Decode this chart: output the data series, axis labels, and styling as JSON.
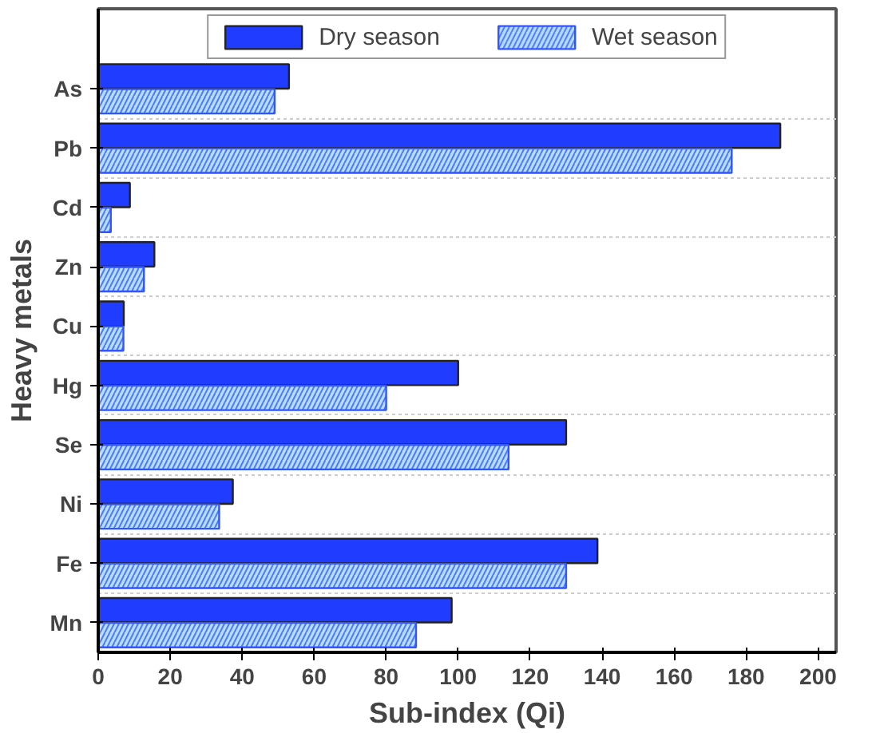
{
  "chart_data": {
    "type": "bar",
    "orientation": "horizontal",
    "xlabel": "Sub-index (Qi)",
    "ylabel": "Heavy metals",
    "categories": [
      "As",
      "Pb",
      "Cd",
      "Zn",
      "Cu",
      "Hg",
      "Se",
      "Ni",
      "Fe",
      "Mn"
    ],
    "series": [
      {
        "name": "Dry season",
        "color": "#1f3cff",
        "values": [
          53,
          189.5,
          8.8,
          15.6,
          7.1,
          100,
          130,
          37.4,
          138.7,
          98.2
        ]
      },
      {
        "name": "Wet season",
        "color": "#b8dcff",
        "values": [
          49,
          176,
          3.5,
          12.7,
          7,
          80,
          114,
          33.6,
          130,
          88.3
        ]
      }
    ],
    "xlim": [
      0,
      205
    ],
    "xticks": [
      0,
      20,
      40,
      60,
      80,
      100,
      120,
      140,
      160,
      180,
      200
    ],
    "grid": "y",
    "legend": "top"
  }
}
